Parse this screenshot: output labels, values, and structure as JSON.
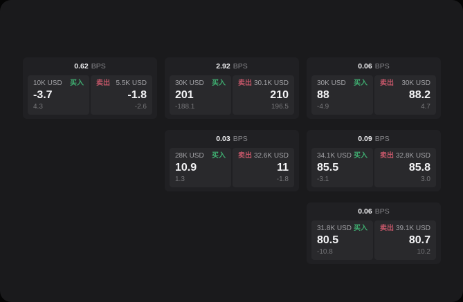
{
  "labels": {
    "bps_unit": "BPS",
    "buy": "买入",
    "sell": "卖出"
  },
  "colors": {
    "page_background": "#1a1a1c",
    "card_background": "#202023",
    "panel_background": "#29292c",
    "buy_accent": "#3fae71",
    "sell_accent": "#c25668",
    "value_text": "#f4f4f6",
    "muted_text": "#767679"
  },
  "cards": [
    {
      "bps": "0.62",
      "buy": {
        "amount": "10K USD",
        "value": "-3.7",
        "sub": "4.3"
      },
      "sell": {
        "amount": "5.5K USD",
        "value": "-1.8",
        "sub": "-2.6"
      }
    },
    {
      "bps": "2.92",
      "buy": {
        "amount": "30K USD",
        "value": "201",
        "sub": "-188.1"
      },
      "sell": {
        "amount": "30.1K USD",
        "value": "210",
        "sub": "196.5"
      }
    },
    {
      "bps": "0.06",
      "buy": {
        "amount": "30K USD",
        "value": "88",
        "sub": "-4.9"
      },
      "sell": {
        "amount": "30K USD",
        "value": "88.2",
        "sub": "4.7"
      }
    },
    {
      "bps": "0.03",
      "buy": {
        "amount": "28K USD",
        "value": "10.9",
        "sub": "1.3"
      },
      "sell": {
        "amount": "32.6K USD",
        "value": "11",
        "sub": "-1.8"
      }
    },
    {
      "bps": "0.09",
      "buy": {
        "amount": "34.1K USD",
        "value": "85.5",
        "sub": "-3.1"
      },
      "sell": {
        "amount": "32.8K USD",
        "value": "85.8",
        "sub": "3.0"
      }
    },
    {
      "bps": "0.06",
      "buy": {
        "amount": "31.8K USD",
        "value": "80.5",
        "sub": "-10.8"
      },
      "sell": {
        "amount": "39.1K USD",
        "value": "80.7",
        "sub": "10.2"
      }
    }
  ]
}
